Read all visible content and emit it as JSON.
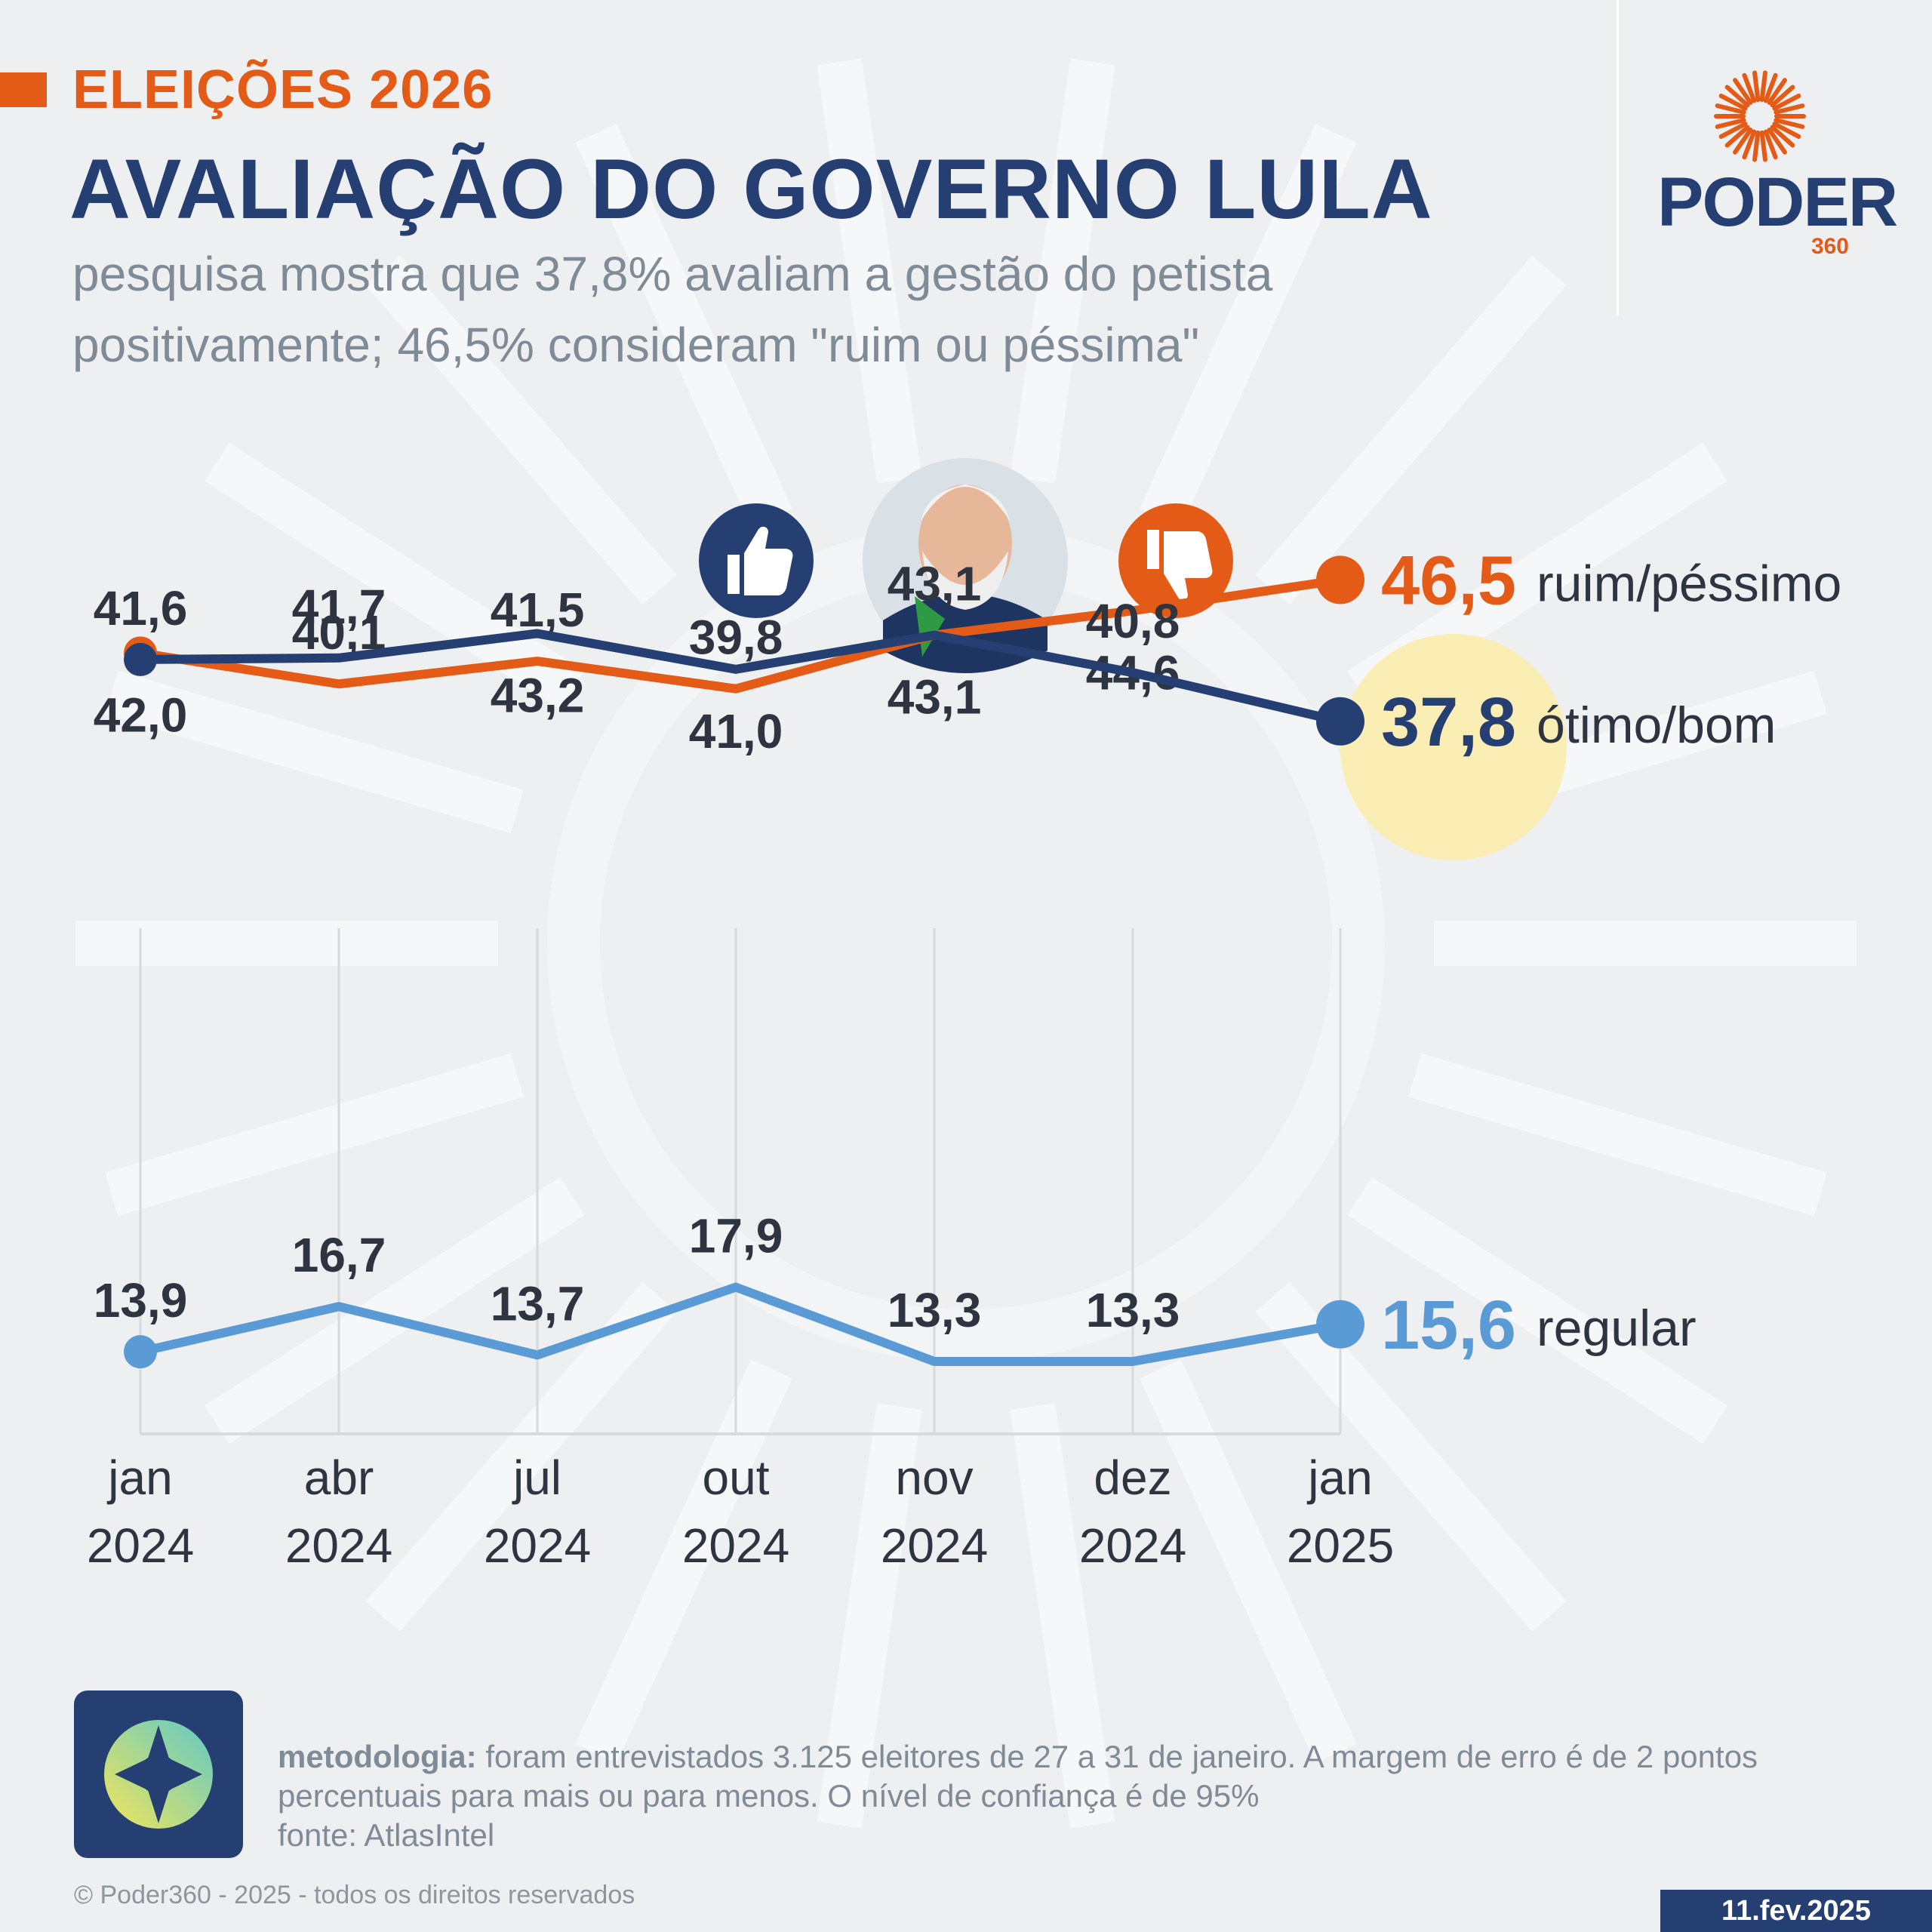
{
  "header": {
    "kicker": "ELEIÇÕES 2026",
    "title": "AVALIAÇÃO DO GOVERNO LULA",
    "subtitle": "pesquisa mostra que 37,8% avaliam a gestão do petista positivamente; 46,5% consideram \"ruim ou péssima\""
  },
  "brand": {
    "name": "PODER",
    "sub": "360"
  },
  "icons": {
    "left": "thumbs-up-icon",
    "center": "portrait-photo",
    "right": "thumbs-down-icon"
  },
  "colors": {
    "orange": "#e35b16",
    "navy": "#263f72",
    "lightblue": "#5b9bd5",
    "highlight": "#fbeeb5",
    "grid": "#d6d9dd"
  },
  "chart_data": {
    "type": "line",
    "categories": [
      [
        "jan",
        "2024"
      ],
      [
        "abr",
        "2024"
      ],
      [
        "jul",
        "2024"
      ],
      [
        "out",
        "2024"
      ],
      [
        "nov",
        "2024"
      ],
      [
        "dez",
        "2024"
      ],
      [
        "jan",
        "2025"
      ]
    ],
    "series": [
      {
        "name": "ruim/péssimo",
        "color": "#e35b16",
        "values": [
          42.0,
          40.1,
          41.5,
          39.8,
          43.1,
          44.6,
          46.5
        ],
        "labels": [
          "42,0",
          "40,1",
          "41,5",
          "39,8",
          "43,1",
          "44,6",
          "46,5"
        ]
      },
      {
        "name": "ótimo/bom",
        "color": "#263f72",
        "values": [
          41.6,
          41.7,
          43.2,
          41.0,
          43.1,
          40.8,
          37.8
        ],
        "labels": [
          "41,6",
          "41,7",
          "43,2",
          "41,0",
          "43,1",
          "40,8",
          "37,8"
        ]
      },
      {
        "name": "regular",
        "color": "#5b9bd5",
        "values": [
          13.9,
          16.7,
          13.7,
          17.9,
          13.3,
          13.3,
          15.6
        ],
        "labels": [
          "13,9",
          "16,7",
          "13,7",
          "17,9",
          "13,3",
          "13,3",
          "15,6"
        ]
      }
    ],
    "ylabel": "",
    "xlabel": "",
    "grid": "vertical",
    "legend": "end-of-line labels"
  },
  "methodology": {
    "label": "metodologia:",
    "text": " foram entrevistados 3.125 eleitores de 27 a 31 de janeiro. A margem de erro é de 2 pontos percentuais para mais ou para menos. O nível de confiança é de 95%",
    "source": "fonte: AtlasIntel"
  },
  "footer": {
    "copyright": "© Poder360 - 2025 - todos os direitos reservados",
    "date": "11.fev.2025"
  }
}
